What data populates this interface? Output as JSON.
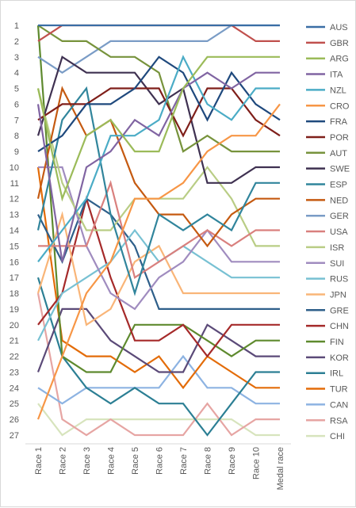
{
  "chart_data": {
    "type": "line",
    "title": "",
    "xlabel": "",
    "ylabel": "",
    "ylim": [
      1,
      27
    ],
    "y_inverted": true,
    "yticks": [
      1,
      2,
      3,
      4,
      5,
      6,
      7,
      8,
      9,
      10,
      11,
      12,
      13,
      14,
      15,
      16,
      17,
      18,
      19,
      20,
      21,
      22,
      23,
      24,
      25,
      26,
      27
    ],
    "categories": [
      "Race 1",
      "Race 2",
      "Race 3",
      "Race 4",
      "Race 5",
      "Race 6",
      "Race 7",
      "Race 8",
      "Race 9",
      "Race 10",
      "Medal race"
    ],
    "grid": false,
    "legend_position": "right",
    "series": [
      {
        "name": "AUS",
        "color": "#3a6ea5",
        "values": [
          1,
          1,
          1,
          1,
          1,
          1,
          1,
          1,
          1,
          1,
          1
        ]
      },
      {
        "name": "GBR",
        "color": "#c0504d",
        "values": [
          2,
          1,
          1,
          1,
          1,
          1,
          1,
          1,
          1,
          2,
          2
        ]
      },
      {
        "name": "ARG",
        "color": "#9bbb59",
        "values": [
          5,
          12,
          8,
          7,
          9,
          9,
          5,
          3,
          3,
          3,
          3
        ]
      },
      {
        "name": "ITA",
        "color": "#8064a2",
        "values": [
          6,
          16,
          10,
          9,
          7,
          8,
          5,
          4,
          5,
          4,
          4
        ]
      },
      {
        "name": "NZL",
        "color": "#4bacc6",
        "values": [
          16,
          14,
          12,
          8,
          8,
          7,
          3,
          6,
          7,
          5,
          5
        ]
      },
      {
        "name": "CRO",
        "color": "#f79646",
        "values": [
          26,
          22,
          18,
          16,
          12,
          12,
          11,
          9,
          8,
          8,
          6
        ]
      },
      {
        "name": "FRA",
        "color": "#1f497d",
        "values": [
          9,
          8,
          6,
          6,
          5,
          3,
          4,
          7,
          4,
          6,
          7
        ]
      },
      {
        "name": "POR",
        "color": "#7f1f1a",
        "values": [
          7,
          6,
          6,
          5,
          5,
          5,
          8,
          5,
          5,
          7,
          8
        ]
      },
      {
        "name": "AUT",
        "color": "#77933c",
        "values": [
          1,
          2,
          2,
          3,
          3,
          4,
          9,
          8,
          9,
          9,
          9
        ]
      },
      {
        "name": "SWE",
        "color": "#3f3151",
        "values": [
          8,
          3,
          4,
          4,
          4,
          6,
          5,
          11,
          11,
          10,
          10
        ]
      },
      {
        "name": "ESP",
        "color": "#31859c",
        "values": [
          14,
          7,
          5,
          13,
          18,
          13,
          14,
          13,
          14,
          11,
          11
        ]
      },
      {
        "name": "NED",
        "color": "#c55a11",
        "values": [
          12,
          5,
          8,
          7,
          11,
          13,
          13,
          15,
          13,
          12,
          12
        ]
      },
      {
        "name": "GER",
        "color": "#7a9cc6",
        "values": [
          3,
          4,
          3,
          2,
          2,
          2,
          2,
          2,
          1,
          1,
          1
        ]
      },
      {
        "name": "USA",
        "color": "#d9807e",
        "values": [
          15,
          15,
          15,
          11,
          17,
          16,
          15,
          14,
          15,
          14,
          14
        ]
      },
      {
        "name": "ISR",
        "color": "#b9cd85",
        "values": [
          5,
          11,
          14,
          14,
          12,
          12,
          12,
          10,
          12,
          15,
          15
        ]
      },
      {
        "name": "SUI",
        "color": "#a08cbf",
        "values": [
          10,
          10,
          15,
          18,
          19,
          17,
          16,
          14,
          16,
          16,
          16
        ]
      },
      {
        "name": "RUS",
        "color": "#78c1d3",
        "values": [
          21,
          18,
          17,
          16,
          14,
          16,
          15,
          16,
          17,
          17,
          17
        ]
      },
      {
        "name": "JPN",
        "color": "#f9b578",
        "values": [
          18,
          13,
          20,
          19,
          16,
          15,
          18,
          18,
          18,
          18,
          18
        ]
      },
      {
        "name": "GRE",
        "color": "#2e5f8a",
        "values": [
          13,
          16,
          12,
          13,
          15,
          19,
          19,
          19,
          19,
          19,
          19
        ]
      },
      {
        "name": "CHN",
        "color": "#a52a2a",
        "values": [
          20,
          18,
          12,
          17,
          21,
          21,
          20,
          22,
          20,
          20,
          20
        ]
      },
      {
        "name": "FIN",
        "color": "#5e8a2e",
        "values": [
          1,
          22,
          23,
          23,
          20,
          20,
          20,
          21,
          22,
          21,
          21
        ]
      },
      {
        "name": "KOR",
        "color": "#5b4a78",
        "values": [
          23,
          19,
          19,
          21,
          22,
          23,
          23,
          20,
          21,
          22,
          22
        ]
      },
      {
        "name": "IRL",
        "color": "#2c7f94",
        "values": [
          17,
          22,
          24,
          25,
          24,
          25,
          25,
          27,
          25,
          23,
          23
        ]
      },
      {
        "name": "TUR",
        "color": "#e36c09",
        "values": [
          10,
          21,
          22,
          22,
          23,
          22,
          24,
          22,
          23,
          24,
          24
        ]
      },
      {
        "name": "CAN",
        "color": "#8db3e2",
        "values": [
          24,
          25,
          24,
          24,
          24,
          24,
          22,
          24,
          24,
          25,
          25
        ]
      },
      {
        "name": "RSA",
        "color": "#e6a5a3",
        "values": [
          18,
          26,
          27,
          26,
          27,
          27,
          27,
          25,
          27,
          26,
          26
        ]
      },
      {
        "name": "CHI",
        "color": "#d7e4bd",
        "values": [
          25,
          27,
          26,
          26,
          26,
          26,
          26,
          26,
          26,
          27,
          27
        ]
      }
    ]
  }
}
